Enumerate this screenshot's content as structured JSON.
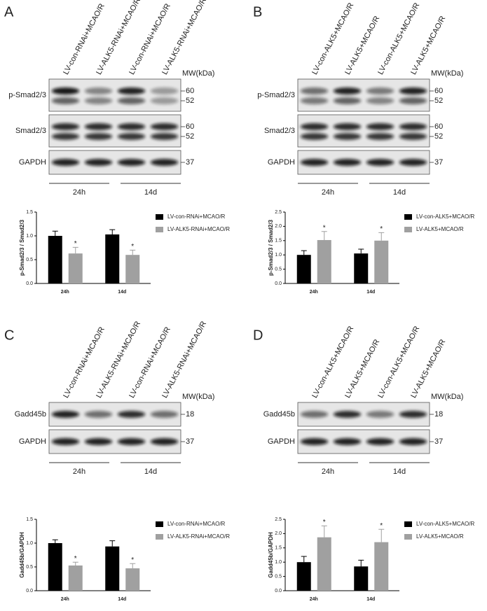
{
  "panels": [
    {
      "letter": "A",
      "lanes": [
        "LV-con-RNAi+MCAO/R",
        "LV-ALK5-RNAi+MCAO/R",
        "LV-con-RNAi+MCAO/R",
        "LV-ALK5-RNAi+MCAO/R"
      ],
      "mw": "MW(kDa)",
      "blots": [
        {
          "label": "p-Smad2/3",
          "markers": [
            "60",
            "52"
          ]
        },
        {
          "label": "Smad2/3",
          "markers": [
            "60",
            "52"
          ]
        },
        {
          "label": "GAPDH",
          "markers": [
            "37"
          ]
        }
      ],
      "times": [
        "24h",
        "14d"
      ]
    },
    {
      "letter": "B",
      "lanes": [
        "LV-con-ALK5+MCAO/R",
        "LV-ALK5+MCAO/R",
        "LV-con-ALK5+MCAO/R",
        "LV-ALK5+MCAO/R"
      ],
      "mw": "MW(kDa)",
      "blots": [
        {
          "label": "p-Smad2/3",
          "markers": [
            "60",
            "52"
          ]
        },
        {
          "label": "Smad2/3",
          "markers": [
            "60",
            "52"
          ]
        },
        {
          "label": "GAPDH",
          "markers": [
            "37"
          ]
        }
      ],
      "times": [
        "24h",
        "14d"
      ]
    },
    {
      "letter": "C",
      "lanes": [
        "LV-con-RNAi+MCAO/R",
        "LV-ALK5-RNAi+MCAO/R",
        "LV-con-RNAi+MCAO/R",
        "LV-ALK5-RNAi+MCAO/R"
      ],
      "mw": "MW(kDa)",
      "blots": [
        {
          "label": "Gadd45b",
          "markers": [
            "18"
          ]
        },
        {
          "label": "GAPDH",
          "markers": [
            "37"
          ]
        }
      ],
      "times": [
        "24h",
        "14d"
      ]
    },
    {
      "letter": "D",
      "lanes": [
        "LV-con-ALK5+MCAO/R",
        "LV-ALK5+MCAO/R",
        "LV-con-ALK5+MCAO/R",
        "LV-ALK5+MCAO/R"
      ],
      "mw": "MW(kDa)",
      "blots": [
        {
          "label": "Gadd45b",
          "markers": [
            "18"
          ]
        },
        {
          "label": "GAPDH",
          "markers": [
            "37"
          ]
        }
      ],
      "times": [
        "24h",
        "14d"
      ]
    }
  ],
  "chart_data": [
    {
      "type": "bar",
      "ylabel": "p-Smad2/3 / Smad2/3",
      "categories": [
        "24h",
        "14d"
      ],
      "ylim": [
        0,
        1.5
      ],
      "yticks": [
        {
          "value": 0,
          "label": "0.0"
        },
        0.5,
        {
          "value": 1,
          "label": "1.0"
        },
        1.5
      ],
      "series": [
        {
          "name": "LV-con-RNAi+MCAO/R",
          "color": "#000000",
          "values": [
            1.0,
            1.03
          ],
          "errors": [
            0.1,
            0.1
          ]
        },
        {
          "name": "LV-ALK5-RNAi+MCAO/R",
          "color": "#a0a0a0",
          "values": [
            0.63,
            0.6
          ],
          "errors": [
            0.13,
            0.1
          ]
        }
      ],
      "annotations": [
        {
          "text": "*",
          "series": 1,
          "category": 0
        },
        {
          "text": "*",
          "series": 1,
          "category": 1
        }
      ]
    },
    {
      "type": "bar",
      "ylabel": "p-Smad2/3 / Smad2/3",
      "categories": [
        "24h",
        "14d"
      ],
      "ylim": [
        0,
        2.5
      ],
      "yticks": [
        {
          "value": 0,
          "label": "0.0"
        },
        0.5,
        {
          "value": 1,
          "label": "1.0"
        },
        1.5,
        {
          "value": 2,
          "label": "2.0"
        },
        2.5
      ],
      "series": [
        {
          "name": "LV-con-ALK5+MCAO/R",
          "color": "#000000",
          "values": [
            1.0,
            1.05
          ],
          "errors": [
            0.15,
            0.15
          ]
        },
        {
          "name": "LV-ALK5+MCAO/R",
          "color": "#a0a0a0",
          "values": [
            1.52,
            1.5
          ],
          "errors": [
            0.3,
            0.28
          ]
        }
      ],
      "annotations": [
        {
          "text": "*",
          "series": 1,
          "category": 0
        },
        {
          "text": "*",
          "series": 1,
          "category": 1
        }
      ]
    },
    {
      "type": "bar",
      "ylabel": "Gadd45b/GAPDH",
      "categories": [
        "24h",
        "14d"
      ],
      "ylim": [
        0,
        1.5
      ],
      "yticks": [
        {
          "value": 0,
          "label": "0.0"
        },
        0.5,
        {
          "value": 1,
          "label": "1.0"
        },
        1.5
      ],
      "series": [
        {
          "name": "LV-con-RNAi+MCAO/R",
          "color": "#000000",
          "values": [
            1.0,
            0.93
          ],
          "errors": [
            0.07,
            0.12
          ]
        },
        {
          "name": "LV-ALK5-RNAi+MCAO/R",
          "color": "#a0a0a0",
          "values": [
            0.53,
            0.47
          ],
          "errors": [
            0.07,
            0.1
          ]
        }
      ],
      "annotations": [
        {
          "text": "*",
          "series": 1,
          "category": 0
        },
        {
          "text": "*",
          "series": 1,
          "category": 1
        }
      ]
    },
    {
      "type": "bar",
      "ylabel": "Gadd45b/GAPDH",
      "categories": [
        "24h",
        "14d"
      ],
      "ylim": [
        0,
        2.5
      ],
      "yticks": [
        {
          "value": 0,
          "label": "0.0"
        },
        0.5,
        {
          "value": 1,
          "label": "1.0"
        },
        1.5,
        {
          "value": 2,
          "label": "2.0"
        },
        2.5
      ],
      "series": [
        {
          "name": "LV-con-ALK5+MCAO/R",
          "color": "#000000",
          "values": [
            1.0,
            0.85
          ],
          "errors": [
            0.2,
            0.22
          ]
        },
        {
          "name": "LV-ALK5+MCAO/R",
          "color": "#a0a0a0",
          "values": [
            1.87,
            1.7
          ],
          "errors": [
            0.4,
            0.45
          ]
        }
      ],
      "annotations": [
        {
          "text": "*",
          "series": 1,
          "category": 0
        },
        {
          "text": "*",
          "series": 1,
          "category": 1
        }
      ]
    }
  ]
}
